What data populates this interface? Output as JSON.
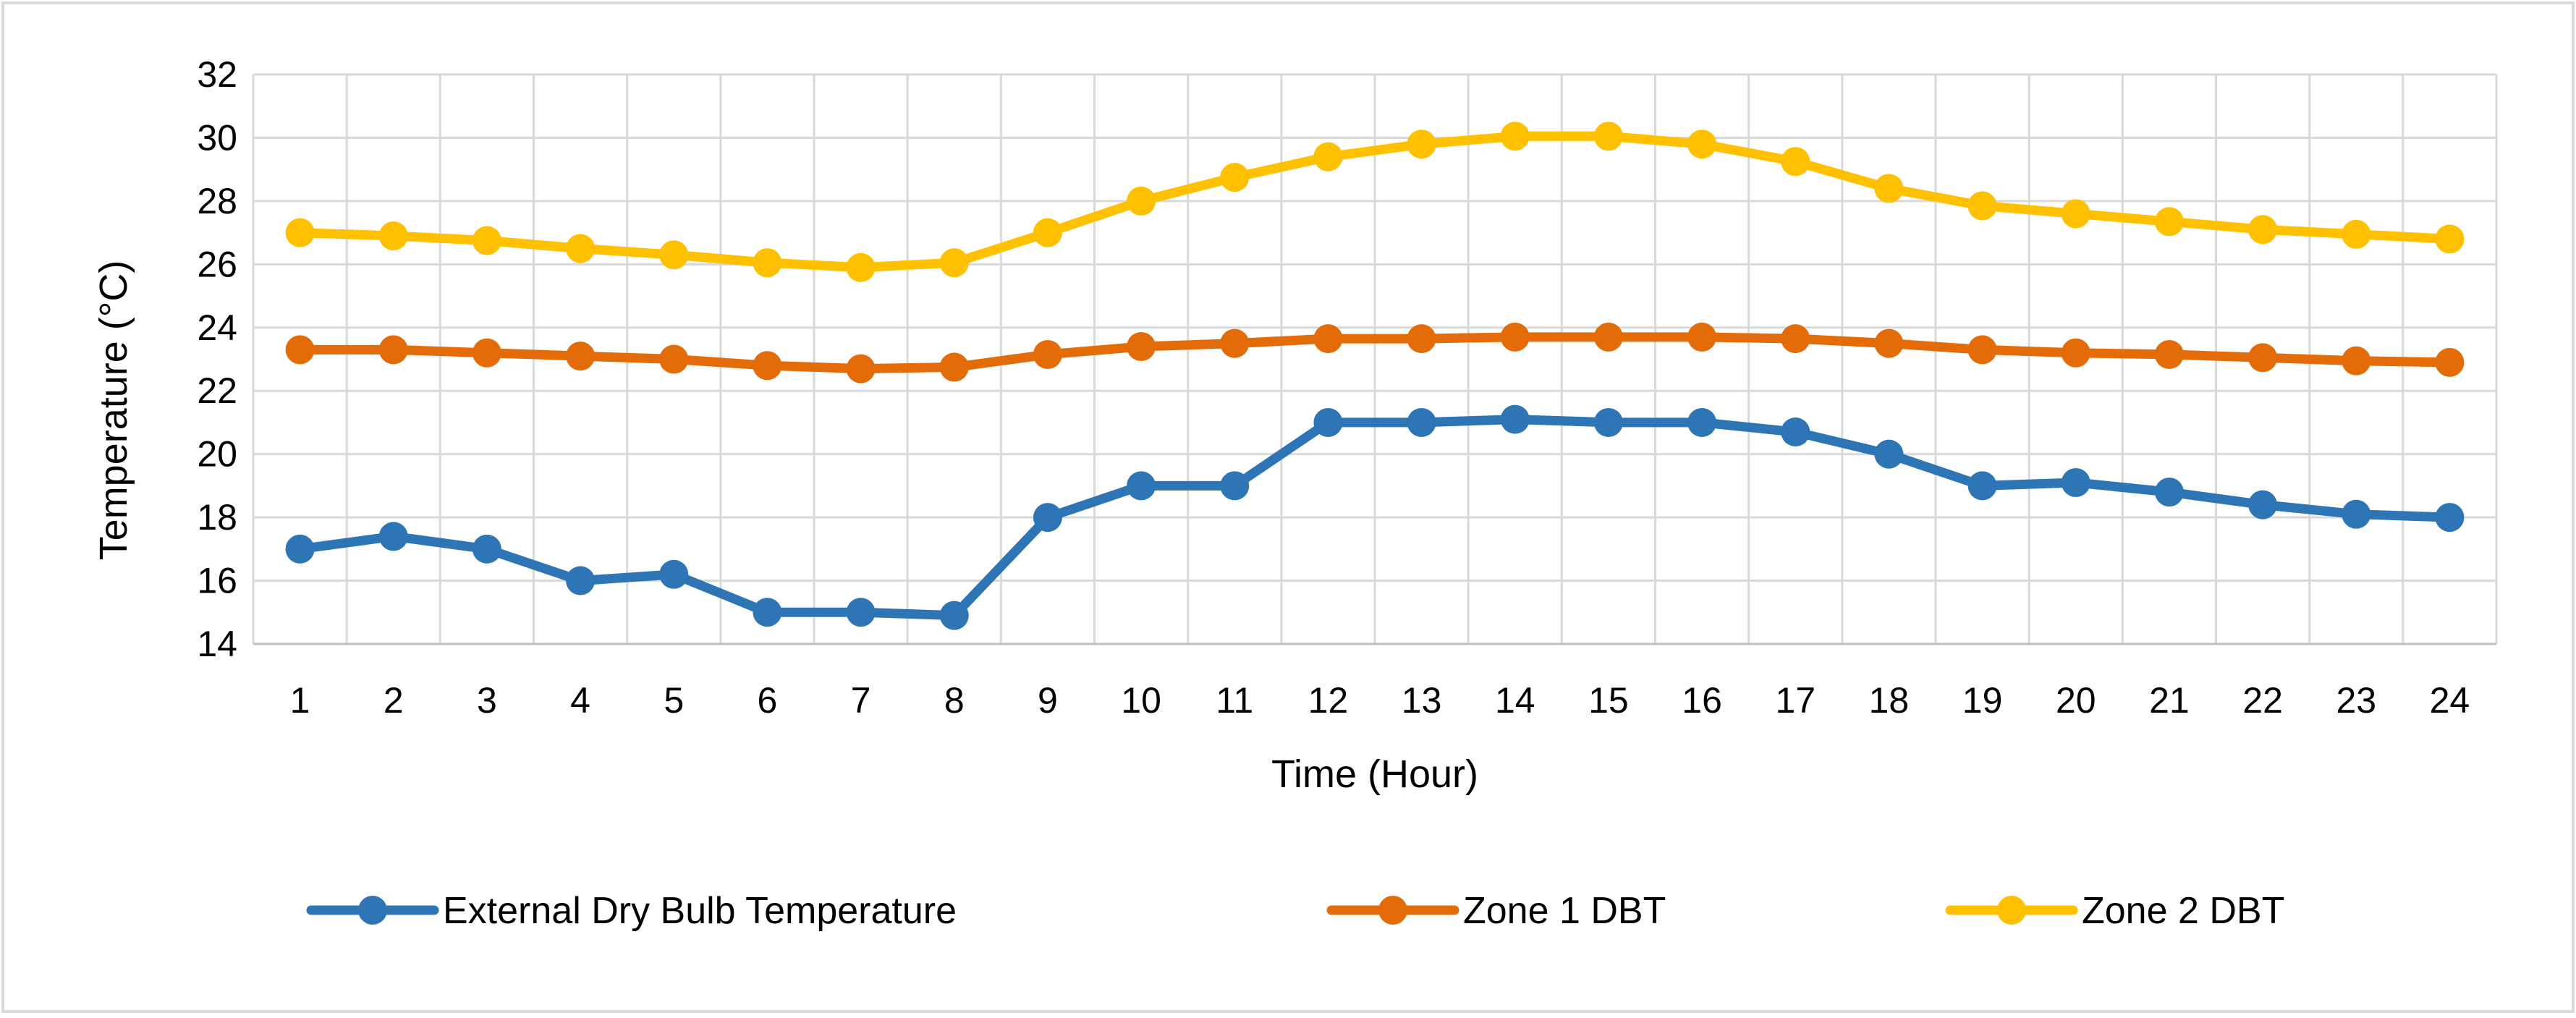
{
  "chart_data": {
    "type": "line",
    "title": "",
    "xlabel": "Time (Hour)",
    "ylabel": "Temperature (°C)",
    "ylim": [
      14,
      32
    ],
    "y_ticks": [
      14,
      16,
      18,
      20,
      22,
      24,
      26,
      28,
      30,
      32
    ],
    "categories": [
      "1",
      "2",
      "3",
      "4",
      "5",
      "6",
      "7",
      "8",
      "9",
      "10",
      "11",
      "12",
      "13",
      "14",
      "15",
      "16",
      "17",
      "18",
      "19",
      "20",
      "21",
      "22",
      "23",
      "24"
    ],
    "grid": true,
    "legend_position": "bottom",
    "series": [
      {
        "name": "External Dry Bulb Temperature",
        "color": "#2E75B6",
        "values": [
          17,
          17.4,
          17,
          16,
          16.2,
          15,
          15,
          14.9,
          18,
          19,
          19,
          21,
          21,
          21.1,
          21,
          21,
          20.7,
          20,
          19,
          19.1,
          18.8,
          18.4,
          18.1,
          18
        ]
      },
      {
        "name": "Zone 1 DBT",
        "color": "#E36C09",
        "values": [
          23.3,
          23.3,
          23.2,
          23.1,
          23.0,
          22.8,
          22.7,
          22.75,
          23.15,
          23.4,
          23.5,
          23.65,
          23.65,
          23.7,
          23.7,
          23.7,
          23.65,
          23.5,
          23.3,
          23.2,
          23.15,
          23.05,
          22.95,
          22.9
        ]
      },
      {
        "name": "Zone 2 DBT",
        "color": "#FFC000",
        "values": [
          27,
          26.9,
          26.75,
          26.5,
          26.3,
          26.05,
          25.9,
          26.05,
          27,
          28,
          28.75,
          29.4,
          29.8,
          30.05,
          30.05,
          29.8,
          29.25,
          28.4,
          27.85,
          27.6,
          27.35,
          27.1,
          26.95,
          26.8
        ]
      }
    ]
  }
}
